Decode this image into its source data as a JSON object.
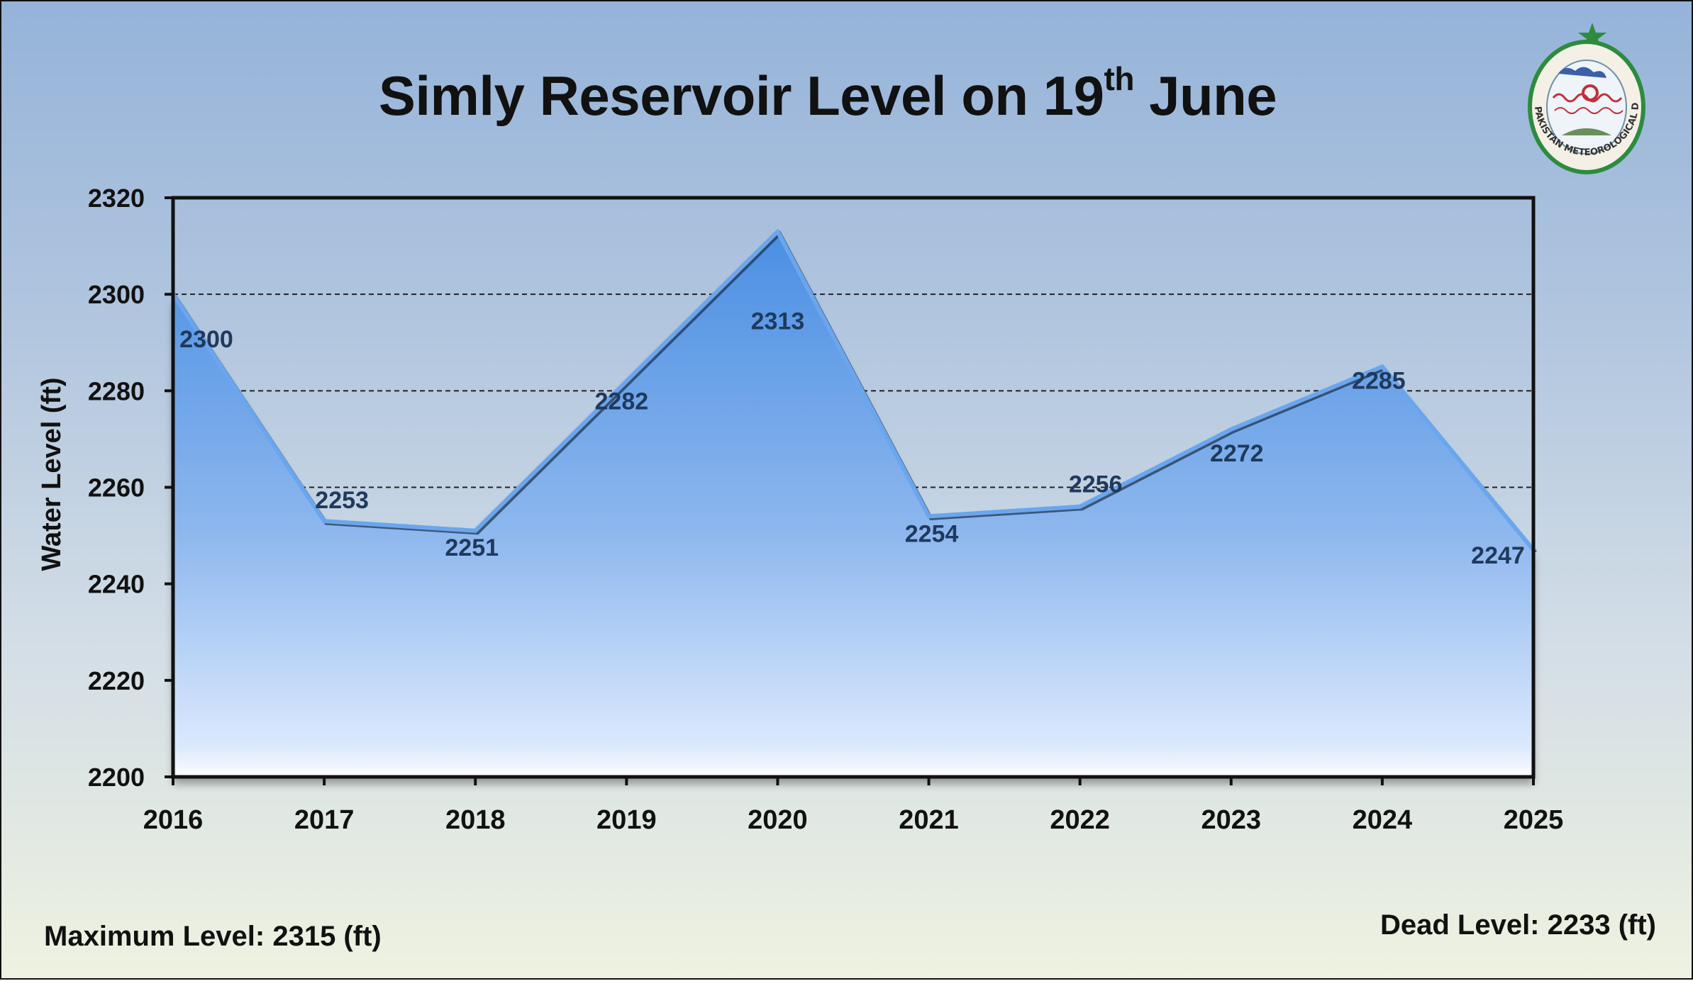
{
  "title": {
    "main": "Simly Reservoir Level on 19",
    "superscript": "th",
    "suffix": " June"
  },
  "footer": {
    "max_level": "Maximum Level: 2315 (ft)",
    "dead_level": "Dead Level: 2233 (ft)"
  },
  "logo": {
    "text": "PAKISTAN METEOROLOGICAL DEPARTMENT"
  },
  "colors": {
    "fill_top": "#4a8fe3",
    "fill_bottom": "#e6f0ff",
    "line": "#6aa6ee",
    "labels": "#1f3a5c",
    "background_top": "#95b3d9",
    "background_bottom": "#eef2e0"
  },
  "chart_data": {
    "type": "area",
    "title": "Simly Reservoir Level on 19th June",
    "xlabel": "",
    "ylabel": "Water Level (ft)",
    "x": [
      "2016",
      "2017",
      "2018",
      "2019",
      "2020",
      "2021",
      "2022",
      "2023",
      "2024",
      "2025"
    ],
    "series": [
      {
        "values": [
          2300,
          2253,
          2251,
          2282,
          2313,
          2254,
          2256,
          2272,
          2285,
          2247
        ]
      }
    ],
    "ylim": [
      2200,
      2320
    ],
    "yticks": [
      2200,
      2220,
      2240,
      2260,
      2280,
      2300,
      2320
    ],
    "gridlines": [
      2260,
      2280,
      2300
    ],
    "grid": "dashed horizontal",
    "legend": "none"
  }
}
